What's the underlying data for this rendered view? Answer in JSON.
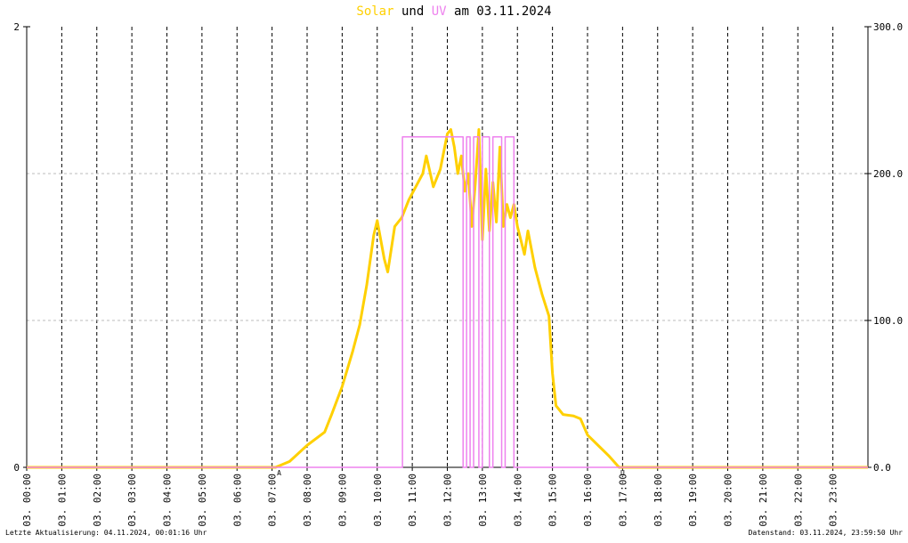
{
  "chart_data": {
    "type": "line",
    "title_date": "am 03.11.2024",
    "title_connector": "und",
    "xlim": [
      0,
      24
    ],
    "xticks": [
      {
        "value": 0,
        "label": "03. 00:00"
      },
      {
        "value": 1,
        "label": "03. 01:00"
      },
      {
        "value": 2,
        "label": "03. 02:00"
      },
      {
        "value": 3,
        "label": "03. 03:00"
      },
      {
        "value": 4,
        "label": "03. 04:00"
      },
      {
        "value": 5,
        "label": "03. 05:00"
      },
      {
        "value": 6,
        "label": "03. 06:00"
      },
      {
        "value": 7,
        "label": "03. 07:00"
      },
      {
        "value": 8,
        "label": "03. 08:00"
      },
      {
        "value": 9,
        "label": "03. 09:00"
      },
      {
        "value": 10,
        "label": "03. 10:00"
      },
      {
        "value": 11,
        "label": "03. 11:00"
      },
      {
        "value": 12,
        "label": "03. 12:00"
      },
      {
        "value": 13,
        "label": "03. 13:00"
      },
      {
        "value": 14,
        "label": "03. 14:00"
      },
      {
        "value": 15,
        "label": "03. 15:00"
      },
      {
        "value": 16,
        "label": "03. 16:00"
      },
      {
        "value": 17,
        "label": "03. 17:00"
      },
      {
        "value": 18,
        "label": "03. 18:00"
      },
      {
        "value": 19,
        "label": "03. 19:00"
      },
      {
        "value": 20,
        "label": "03. 20:00"
      },
      {
        "value": 21,
        "label": "03. 21:00"
      },
      {
        "value": 22,
        "label": "03. 22:00"
      },
      {
        "value": 23,
        "label": "03. 23:00"
      }
    ],
    "ylim": [
      0,
      2
    ],
    "yticks": [
      0,
      2
    ],
    "y2lim": [
      0,
      300
    ],
    "y2ticks": [
      {
        "value": 0,
        "label": "0.0"
      },
      {
        "value": 100,
        "label": "100.0"
      },
      {
        "value": 200,
        "label": "200.0"
      },
      {
        "value": 300,
        "label": "300.0"
      }
    ],
    "grid": true,
    "annotations": [
      {
        "x": 7.2,
        "label": "A"
      },
      {
        "x": 17.0,
        "label": "U"
      }
    ],
    "series": [
      {
        "name": "Solar",
        "color": "#ffd000",
        "axis": "y2",
        "x": [
          0,
          7.1,
          7.5,
          8.0,
          8.5,
          8.7,
          9.0,
          9.3,
          9.5,
          9.7,
          9.9,
          10.0,
          10.2,
          10.3,
          10.5,
          10.7,
          10.9,
          11.1,
          11.3,
          11.4,
          11.6,
          11.8,
          12.0,
          12.1,
          12.2,
          12.3,
          12.4,
          12.5,
          12.6,
          12.7,
          12.8,
          12.9,
          13.0,
          13.1,
          13.2,
          13.3,
          13.4,
          13.5,
          13.6,
          13.7,
          13.8,
          13.9,
          14.0,
          14.2,
          14.3,
          14.5,
          14.7,
          14.9,
          15.0,
          15.1,
          15.3,
          15.6,
          15.8,
          16.0,
          16.3,
          16.6,
          16.9,
          24
        ],
        "values": [
          0,
          0,
          4,
          15,
          24,
          36,
          55,
          79,
          97,
          124,
          158,
          168,
          142,
          133,
          164,
          170,
          182,
          191,
          200,
          212,
          191,
          203,
          227,
          230,
          218,
          200,
          212,
          188,
          200,
          164,
          194,
          230,
          155,
          203,
          161,
          194,
          167,
          218,
          164,
          179,
          170,
          179,
          164,
          145,
          161,
          136,
          118,
          103,
          64,
          42,
          36,
          35,
          33,
          22,
          15,
          8,
          0,
          0
        ]
      },
      {
        "name": "UV",
        "color": "#ee82ee",
        "axis": "y",
        "x": [
          0,
          10.72,
          10.72,
          12.45,
          12.45,
          12.55,
          12.55,
          12.65,
          12.65,
          12.75,
          12.75,
          12.9,
          12.9,
          13.0,
          13.0,
          13.2,
          13.2,
          13.3,
          13.3,
          13.55,
          13.55,
          13.65,
          13.65,
          13.9,
          13.9,
          24
        ],
        "values": [
          0,
          0,
          1.5,
          1.5,
          0,
          0,
          1.5,
          1.5,
          0,
          0,
          1.5,
          1.5,
          0,
          0,
          1.5,
          1.5,
          0,
          0,
          1.5,
          1.5,
          0,
          0,
          1.5,
          1.5,
          0,
          0
        ]
      }
    ]
  },
  "footer": {
    "left": "Letzte Aktualisierung: 04.11.2024, 00:01:16 Uhr",
    "right": "Datenstand: 03.11.2024, 23:59:50 Uhr"
  }
}
